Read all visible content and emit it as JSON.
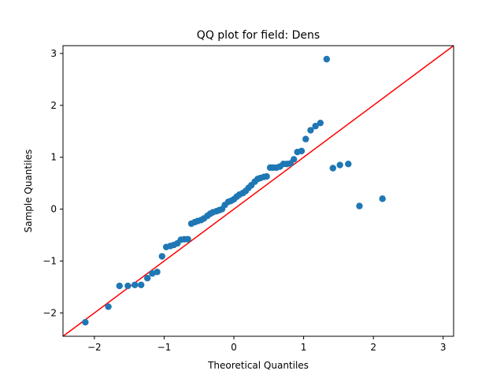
{
  "chart_data": {
    "type": "scatter",
    "title": "QQ plot for field: Dens",
    "xlabel": "Theoretical Quantiles",
    "ylabel": "Sample Quantiles",
    "xlim": [
      -2.45,
      3.15
    ],
    "ylim": [
      -2.45,
      3.15
    ],
    "xticks": [
      -2,
      -1,
      0,
      1,
      2,
      3
    ],
    "yticks": [
      -2,
      -1,
      0,
      1,
      2,
      3
    ],
    "grid": false,
    "series": [
      {
        "kind": "points",
        "color": "#1f77b4",
        "x": [
          -2.13,
          -1.8,
          -1.64,
          -1.52,
          -1.42,
          -1.33,
          -1.24,
          -1.17,
          -1.1,
          -1.03,
          -0.97,
          -0.91,
          -0.86,
          -0.81,
          -0.76,
          -0.71,
          -0.66,
          -0.61,
          -0.56,
          -0.52,
          -0.47,
          -0.43,
          -0.38,
          -0.34,
          -0.3,
          -0.25,
          -0.21,
          -0.17,
          -0.13,
          -0.08,
          -0.04,
          0.0,
          0.04,
          0.08,
          0.13,
          0.17,
          0.21,
          0.25,
          0.3,
          0.34,
          0.38,
          0.43,
          0.47,
          0.52,
          0.56,
          0.61,
          0.66,
          0.71,
          0.76,
          0.81,
          0.86,
          0.91,
          0.97,
          1.03,
          1.1,
          1.17,
          1.24,
          1.33,
          1.42,
          1.52,
          1.64,
          1.8,
          2.13
        ],
        "y": [
          -2.18,
          -1.88,
          -1.48,
          -1.48,
          -1.46,
          -1.46,
          -1.33,
          -1.24,
          -1.21,
          -0.91,
          -0.73,
          -0.71,
          -0.69,
          -0.66,
          -0.59,
          -0.58,
          -0.58,
          -0.28,
          -0.25,
          -0.23,
          -0.21,
          -0.18,
          -0.13,
          -0.09,
          -0.06,
          -0.04,
          -0.02,
          0.0,
          0.08,
          0.14,
          0.16,
          0.19,
          0.24,
          0.28,
          0.31,
          0.35,
          0.41,
          0.46,
          0.53,
          0.58,
          0.6,
          0.62,
          0.63,
          0.8,
          0.8,
          0.8,
          0.82,
          0.87,
          0.87,
          0.88,
          0.96,
          1.1,
          1.12,
          1.35,
          1.52,
          1.6,
          1.66,
          2.89,
          0.79,
          0.85,
          0.87,
          0.06,
          0.2
        ]
      },
      {
        "kind": "reference-line",
        "color": "#ff0000",
        "x": [
          -2.45,
          3.15
        ],
        "y": [
          -2.45,
          3.15
        ]
      }
    ]
  }
}
